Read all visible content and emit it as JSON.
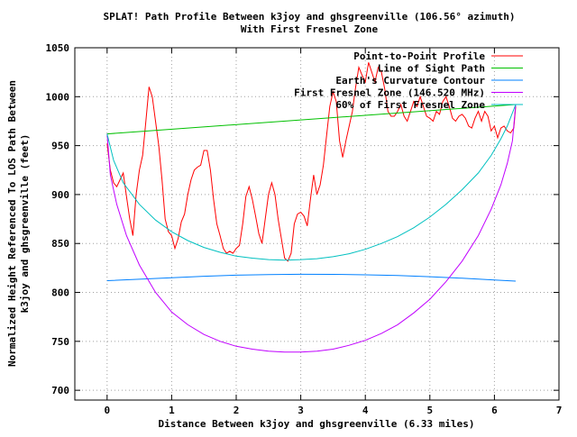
{
  "chart_data": {
    "type": "line",
    "title": "SPLAT! Path Profile Between k3joy and ghsgreenville (106.56° azimuth)",
    "subtitle": "With First Fresnel Zone",
    "xlabel": "Distance Between k3joy and ghsgreenville (6.33 miles)",
    "ylabel_line1": "Normalized Height Referenced To LOS Path Between",
    "ylabel_line2": "k3joy and ghsgreenville (feet)",
    "xlim": [
      -0.5,
      7
    ],
    "ylim": [
      690,
      1050
    ],
    "x_ticks": [
      0,
      1,
      2,
      3,
      4,
      5,
      6,
      7
    ],
    "y_ticks": [
      700,
      750,
      800,
      850,
      900,
      950,
      1000,
      1050
    ],
    "grid": true,
    "legend_position": "top-right",
    "series": [
      {
        "name": "Point-to-Point Profile",
        "color": "#ff0000",
        "points": [
          [
            0.0,
            952
          ],
          [
            0.05,
            925
          ],
          [
            0.1,
            912
          ],
          [
            0.15,
            908
          ],
          [
            0.2,
            915
          ],
          [
            0.25,
            922
          ],
          [
            0.3,
            898
          ],
          [
            0.35,
            875
          ],
          [
            0.4,
            858
          ],
          [
            0.45,
            900
          ],
          [
            0.5,
            925
          ],
          [
            0.55,
            940
          ],
          [
            0.6,
            975
          ],
          [
            0.65,
            1010
          ],
          [
            0.7,
            1000
          ],
          [
            0.75,
            975
          ],
          [
            0.8,
            950
          ],
          [
            0.85,
            915
          ],
          [
            0.9,
            875
          ],
          [
            0.95,
            862
          ],
          [
            1.0,
            858
          ],
          [
            1.05,
            845
          ],
          [
            1.1,
            855
          ],
          [
            1.15,
            872
          ],
          [
            1.2,
            880
          ],
          [
            1.25,
            900
          ],
          [
            1.3,
            915
          ],
          [
            1.35,
            925
          ],
          [
            1.4,
            928
          ],
          [
            1.45,
            930
          ],
          [
            1.5,
            945
          ],
          [
            1.55,
            945
          ],
          [
            1.6,
            925
          ],
          [
            1.65,
            895
          ],
          [
            1.7,
            870
          ],
          [
            1.75,
            858
          ],
          [
            1.8,
            845
          ],
          [
            1.85,
            840
          ],
          [
            1.9,
            842
          ],
          [
            1.95,
            840
          ],
          [
            2.0,
            845
          ],
          [
            2.05,
            848
          ],
          [
            2.1,
            870
          ],
          [
            2.15,
            898
          ],
          [
            2.2,
            908
          ],
          [
            2.25,
            895
          ],
          [
            2.3,
            878
          ],
          [
            2.35,
            860
          ],
          [
            2.4,
            850
          ],
          [
            2.45,
            875
          ],
          [
            2.5,
            900
          ],
          [
            2.55,
            912
          ],
          [
            2.6,
            900
          ],
          [
            2.65,
            875
          ],
          [
            2.7,
            855
          ],
          [
            2.75,
            835
          ],
          [
            2.8,
            832
          ],
          [
            2.85,
            840
          ],
          [
            2.9,
            870
          ],
          [
            2.95,
            880
          ],
          [
            3.0,
            882
          ],
          [
            3.05,
            878
          ],
          [
            3.1,
            868
          ],
          [
            3.15,
            895
          ],
          [
            3.2,
            920
          ],
          [
            3.25,
            900
          ],
          [
            3.3,
            910
          ],
          [
            3.35,
            930
          ],
          [
            3.4,
            960
          ],
          [
            3.45,
            990
          ],
          [
            3.5,
            1005
          ],
          [
            3.55,
            995
          ],
          [
            3.6,
            955
          ],
          [
            3.65,
            938
          ],
          [
            3.7,
            955
          ],
          [
            3.75,
            970
          ],
          [
            3.8,
            985
          ],
          [
            3.85,
            1010
          ],
          [
            3.9,
            1030
          ],
          [
            3.95,
            1022
          ],
          [
            4.0,
            1015
          ],
          [
            4.05,
            1035
          ],
          [
            4.1,
            1025
          ],
          [
            4.15,
            1015
          ],
          [
            4.2,
            1030
          ],
          [
            4.25,
            1025
          ],
          [
            4.3,
            1008
          ],
          [
            4.35,
            985
          ],
          [
            4.4,
            980
          ],
          [
            4.45,
            980
          ],
          [
            4.5,
            985
          ],
          [
            4.55,
            992
          ],
          [
            4.6,
            980
          ],
          [
            4.65,
            975
          ],
          [
            4.7,
            985
          ],
          [
            4.75,
            995
          ],
          [
            4.8,
            990
          ],
          [
            4.85,
            1000
          ],
          [
            4.9,
            990
          ],
          [
            4.95,
            980
          ],
          [
            5.0,
            978
          ],
          [
            5.05,
            975
          ],
          [
            5.1,
            985
          ],
          [
            5.15,
            982
          ],
          [
            5.2,
            995
          ],
          [
            5.25,
            1000
          ],
          [
            5.3,
            990
          ],
          [
            5.35,
            978
          ],
          [
            5.4,
            975
          ],
          [
            5.45,
            980
          ],
          [
            5.5,
            982
          ],
          [
            5.55,
            978
          ],
          [
            5.6,
            970
          ],
          [
            5.65,
            968
          ],
          [
            5.7,
            978
          ],
          [
            5.75,
            985
          ],
          [
            5.8,
            975
          ],
          [
            5.85,
            985
          ],
          [
            5.9,
            980
          ],
          [
            5.95,
            965
          ],
          [
            6.0,
            970
          ],
          [
            6.05,
            958
          ],
          [
            6.1,
            968
          ],
          [
            6.15,
            970
          ],
          [
            6.2,
            965
          ],
          [
            6.25,
            963
          ],
          [
            6.3,
            968
          ],
          [
            6.33,
            990
          ]
        ]
      },
      {
        "name": "Line of Sight Path",
        "color": "#00c000",
        "points": [
          [
            0.0,
            962
          ],
          [
            6.33,
            992
          ]
        ]
      },
      {
        "name": "Earth's Curvature Contour",
        "color": "#0080ff",
        "points": [
          [
            0.0,
            812
          ],
          [
            0.5,
            813.5
          ],
          [
            1.0,
            815
          ],
          [
            1.5,
            816.5
          ],
          [
            2.0,
            817.6
          ],
          [
            2.5,
            818.2
          ],
          [
            3.0,
            818.5
          ],
          [
            3.5,
            818.4
          ],
          [
            4.0,
            818
          ],
          [
            4.5,
            817.2
          ],
          [
            5.0,
            816
          ],
          [
            5.5,
            814.5
          ],
          [
            6.0,
            812.7
          ],
          [
            6.33,
            811.5
          ]
        ]
      },
      {
        "name": "First Fresnel Zone (146.520 MHz)",
        "color": "#c000ff",
        "points": [
          [
            0.0,
            962
          ],
          [
            0.05,
            920
          ],
          [
            0.15,
            890
          ],
          [
            0.3,
            858
          ],
          [
            0.5,
            828
          ],
          [
            0.75,
            800
          ],
          [
            1.0,
            780
          ],
          [
            1.25,
            767
          ],
          [
            1.5,
            757
          ],
          [
            1.75,
            750
          ],
          [
            2.0,
            745
          ],
          [
            2.25,
            742
          ],
          [
            2.5,
            740
          ],
          [
            2.75,
            739
          ],
          [
            3.0,
            739
          ],
          [
            3.25,
            740
          ],
          [
            3.5,
            742
          ],
          [
            3.75,
            746
          ],
          [
            4.0,
            751
          ],
          [
            4.25,
            758
          ],
          [
            4.5,
            767
          ],
          [
            4.75,
            779
          ],
          [
            5.0,
            793
          ],
          [
            5.25,
            811
          ],
          [
            5.5,
            832
          ],
          [
            5.75,
            858
          ],
          [
            5.95,
            885
          ],
          [
            6.1,
            910
          ],
          [
            6.2,
            932
          ],
          [
            6.28,
            955
          ],
          [
            6.33,
            992
          ]
        ]
      },
      {
        "name": "60% of First Fresnel Zone",
        "color": "#00c0c0",
        "points": [
          [
            0.0,
            962
          ],
          [
            0.1,
            935
          ],
          [
            0.25,
            912
          ],
          [
            0.5,
            890
          ],
          [
            0.75,
            874
          ],
          [
            1.0,
            862
          ],
          [
            1.25,
            853
          ],
          [
            1.5,
            846
          ],
          [
            1.75,
            841
          ],
          [
            2.0,
            837
          ],
          [
            2.25,
            835
          ],
          [
            2.5,
            833.5
          ],
          [
            2.75,
            833
          ],
          [
            3.0,
            833.5
          ],
          [
            3.25,
            834.5
          ],
          [
            3.5,
            836.5
          ],
          [
            3.75,
            839.5
          ],
          [
            4.0,
            844
          ],
          [
            4.25,
            850
          ],
          [
            4.5,
            857
          ],
          [
            4.75,
            866
          ],
          [
            5.0,
            877
          ],
          [
            5.25,
            890
          ],
          [
            5.5,
            905
          ],
          [
            5.75,
            922
          ],
          [
            5.95,
            940
          ],
          [
            6.1,
            957
          ],
          [
            6.2,
            970
          ],
          [
            6.33,
            992
          ]
        ]
      }
    ]
  }
}
